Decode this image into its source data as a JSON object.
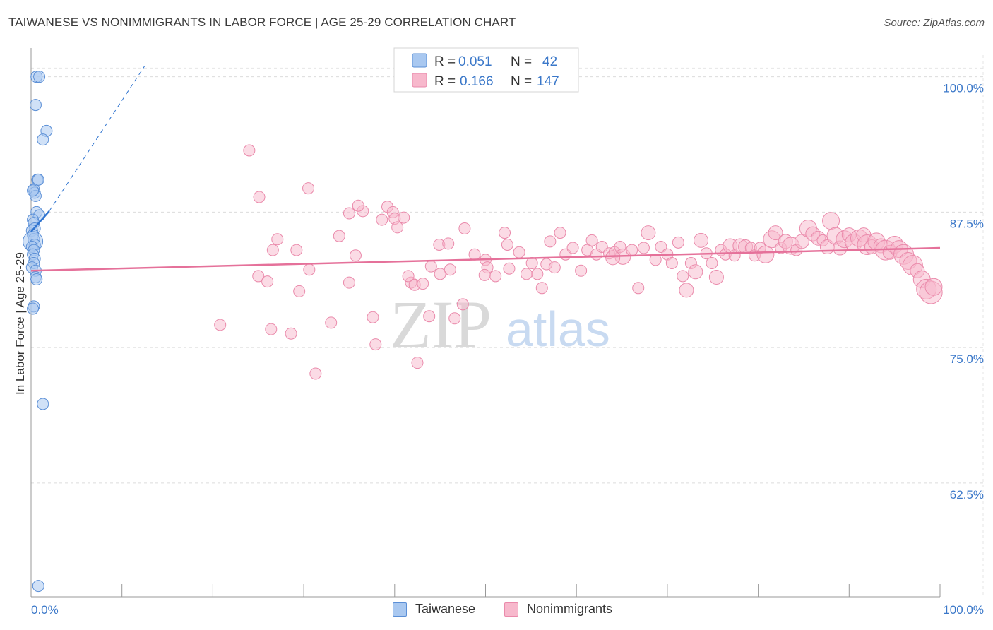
{
  "header": {
    "title": "TAIWANESE VS NONIMMIGRANTS IN LABOR FORCE | AGE 25-29 CORRELATION CHART",
    "source": "Source: ZipAtlas.com"
  },
  "watermark": {
    "zip": "ZIP",
    "atlas": "atlas"
  },
  "colors": {
    "taiwanese_fill": "#a9c8f0",
    "taiwanese_stroke": "#5b8fd6",
    "taiwanese_line": "#2f74d0",
    "nonimm_fill": "#f7b8cc",
    "nonimm_stroke": "#ea8aab",
    "nonimm_line": "#e5719a",
    "tick": "#3b78c9"
  },
  "legend": {
    "rows": [
      {
        "r_label": "R =",
        "r_value": "0.051",
        "n_label": "N =",
        "n_value": "42"
      },
      {
        "r_label": "R =",
        "r_value": "0.166",
        "n_label": "N =",
        "n_value": "147"
      }
    ]
  },
  "chart_data": {
    "type": "scatter",
    "title": "TAIWANESE VS NONIMMIGRANTS IN LABOR FORCE | AGE 25-29 CORRELATION CHART",
    "xlabel": "",
    "ylabel": "In Labor Force | Age 25-29",
    "xlim": [
      0,
      100
    ],
    "ylim": [
      52,
      102
    ],
    "x_tick_labels": [
      "0.0%",
      "100.0%"
    ],
    "y_ticks": [
      100,
      87.5,
      75,
      62.5
    ],
    "y_tick_labels": [
      "100.0%",
      "87.5%",
      "75.0%",
      "62.5%"
    ],
    "series": [
      {
        "name": "Taiwanese",
        "r": 0.051,
        "n": 42,
        "trend": {
          "x": [
            0,
            2
          ],
          "y": [
            85.7,
            87.6
          ],
          "dashed_to": [
            12.5,
            101
          ]
        },
        "points": [
          [
            0.6,
            100.0,
            8
          ],
          [
            0.9,
            100.0,
            8
          ],
          [
            0.5,
            97.4,
            8
          ],
          [
            1.7,
            95.0,
            8
          ],
          [
            1.3,
            94.2,
            8
          ],
          [
            0.7,
            90.5,
            8
          ],
          [
            0.8,
            90.5,
            8
          ],
          [
            0.3,
            89.6,
            8
          ],
          [
            0.4,
            89.3,
            8
          ],
          [
            0.5,
            89.0,
            8
          ],
          [
            0.2,
            89.5,
            8
          ],
          [
            0.6,
            87.5,
            8
          ],
          [
            0.9,
            87.2,
            8
          ],
          [
            0.2,
            86.8,
            8
          ],
          [
            0.3,
            86.5,
            8
          ],
          [
            0.4,
            86.0,
            8
          ],
          [
            0.1,
            85.8,
            8
          ],
          [
            0.2,
            85.4,
            8
          ],
          [
            0.3,
            85.0,
            8
          ],
          [
            0.2,
            84.8,
            14
          ],
          [
            0.4,
            84.5,
            8
          ],
          [
            0.1,
            84.3,
            8
          ],
          [
            0.3,
            84.0,
            8
          ],
          [
            0.2,
            83.6,
            8
          ],
          [
            0.4,
            83.2,
            8
          ],
          [
            0.3,
            82.8,
            8
          ],
          [
            0.1,
            82.4,
            8
          ],
          [
            0.5,
            82.1,
            8
          ],
          [
            0.5,
            81.5,
            8
          ],
          [
            0.6,
            81.3,
            8
          ],
          [
            0.3,
            78.8,
            8
          ],
          [
            0.2,
            78.6,
            8
          ],
          [
            1.3,
            69.8,
            8
          ],
          [
            0.8,
            53.0,
            8
          ]
        ]
      },
      {
        "name": "Nonimmigrants",
        "r": 0.166,
        "n": 147,
        "trend": {
          "x": [
            0,
            100
          ],
          "y": [
            82.1,
            84.2
          ]
        },
        "points": [
          [
            24.0,
            93.2,
            8
          ],
          [
            25.1,
            88.9,
            8
          ],
          [
            30.5,
            89.7,
            8
          ],
          [
            35.0,
            87.4,
            8
          ],
          [
            36.5,
            87.6,
            8
          ],
          [
            36.0,
            88.1,
            8
          ],
          [
            38.6,
            86.8,
            8
          ],
          [
            39.2,
            88.0,
            8
          ],
          [
            39.8,
            87.5,
            8
          ],
          [
            40.0,
            86.9,
            8
          ],
          [
            40.3,
            86.1,
            8
          ],
          [
            41.0,
            87.0,
            8
          ],
          [
            33.9,
            85.3,
            8
          ],
          [
            27.1,
            85.0,
            8
          ],
          [
            26.6,
            84.0,
            8
          ],
          [
            29.2,
            84.0,
            8
          ],
          [
            35.7,
            83.5,
            8
          ],
          [
            30.6,
            82.2,
            8
          ],
          [
            25.0,
            81.6,
            8
          ],
          [
            26.0,
            81.1,
            8
          ],
          [
            29.5,
            80.2,
            8
          ],
          [
            35.0,
            81.0,
            8
          ],
          [
            20.8,
            77.1,
            8
          ],
          [
            26.4,
            76.7,
            8
          ],
          [
            28.6,
            76.3,
            8
          ],
          [
            33.0,
            77.3,
            8
          ],
          [
            37.6,
            77.8,
            8
          ],
          [
            37.9,
            75.3,
            8
          ],
          [
            31.3,
            72.6,
            8
          ],
          [
            42.5,
            73.6,
            8
          ],
          [
            41.8,
            81.0,
            8
          ],
          [
            42.2,
            80.8,
            8
          ],
          [
            43.1,
            80.9,
            8
          ],
          [
            41.5,
            81.6,
            8
          ],
          [
            44.0,
            82.5,
            8
          ],
          [
            45.0,
            81.8,
            8
          ],
          [
            46.1,
            82.2,
            8
          ],
          [
            47.5,
            79.0,
            8
          ],
          [
            46.6,
            77.7,
            8
          ],
          [
            43.8,
            77.9,
            8
          ],
          [
            44.9,
            84.5,
            8
          ],
          [
            45.9,
            84.6,
            8
          ],
          [
            47.7,
            86.0,
            8
          ],
          [
            48.8,
            83.6,
            8
          ],
          [
            50.0,
            83.1,
            8
          ],
          [
            50.2,
            82.4,
            8
          ],
          [
            51.1,
            81.6,
            8
          ],
          [
            49.9,
            81.7,
            8
          ],
          [
            52.6,
            82.3,
            8
          ],
          [
            52.1,
            85.6,
            8
          ],
          [
            52.4,
            84.5,
            8
          ],
          [
            53.7,
            83.8,
            8
          ],
          [
            54.5,
            81.8,
            8
          ],
          [
            55.1,
            82.8,
            8
          ],
          [
            55.7,
            81.8,
            8
          ],
          [
            56.7,
            82.7,
            8
          ],
          [
            57.6,
            82.4,
            8
          ],
          [
            57.1,
            84.8,
            8
          ],
          [
            58.2,
            85.6,
            8
          ],
          [
            58.8,
            83.6,
            8
          ],
          [
            59.6,
            84.2,
            8
          ],
          [
            60.5,
            82.1,
            8
          ],
          [
            61.2,
            84.0,
            8
          ],
          [
            61.7,
            84.9,
            8
          ],
          [
            62.2,
            83.6,
            8
          ],
          [
            62.8,
            84.3,
            8
          ],
          [
            63.6,
            83.7,
            8
          ],
          [
            64.2,
            83.8,
            8
          ],
          [
            64.8,
            84.3,
            8
          ],
          [
            65.1,
            83.4,
            11
          ],
          [
            66.1,
            84.0,
            8
          ],
          [
            66.8,
            80.5,
            8
          ],
          [
            67.4,
            84.2,
            8
          ],
          [
            67.9,
            85.6,
            10
          ],
          [
            68.7,
            83.1,
            8
          ],
          [
            69.3,
            84.3,
            8
          ],
          [
            70.0,
            83.6,
            8
          ],
          [
            70.5,
            82.8,
            8
          ],
          [
            71.2,
            84.7,
            8
          ],
          [
            71.7,
            81.6,
            8
          ],
          [
            72.1,
            80.3,
            10
          ],
          [
            72.6,
            82.8,
            8
          ],
          [
            73.1,
            82.0,
            10
          ],
          [
            73.7,
            84.9,
            10
          ],
          [
            74.3,
            83.7,
            8
          ],
          [
            74.9,
            82.8,
            8
          ],
          [
            75.4,
            81.5,
            10
          ],
          [
            75.9,
            84.0,
            8
          ],
          [
            76.4,
            83.6,
            8
          ],
          [
            76.9,
            84.4,
            10
          ],
          [
            77.4,
            83.5,
            8
          ],
          [
            78.0,
            84.4,
            10
          ],
          [
            78.6,
            84.3,
            10
          ],
          [
            79.2,
            84.2,
            8
          ],
          [
            79.6,
            83.5,
            8
          ],
          [
            80.2,
            84.2,
            8
          ],
          [
            80.8,
            83.6,
            12
          ],
          [
            81.5,
            85.0,
            12
          ],
          [
            81.9,
            85.6,
            10
          ],
          [
            82.5,
            84.2,
            8
          ],
          [
            83.0,
            84.8,
            10
          ],
          [
            83.6,
            84.4,
            12
          ],
          [
            84.2,
            84.0,
            8
          ],
          [
            84.8,
            84.8,
            10
          ],
          [
            85.5,
            86.0,
            12
          ],
          [
            86.0,
            85.5,
            10
          ],
          [
            86.6,
            85.1,
            10
          ],
          [
            87.1,
            84.9,
            8
          ],
          [
            87.6,
            84.3,
            10
          ],
          [
            88.0,
            86.7,
            12
          ],
          [
            88.5,
            85.3,
            12
          ],
          [
            89.0,
            84.2,
            10
          ],
          [
            89.5,
            85.0,
            12
          ],
          [
            90.0,
            85.4,
            10
          ],
          [
            90.5,
            84.7,
            12
          ],
          [
            91.1,
            85.1,
            12
          ],
          [
            91.6,
            85.4,
            10
          ],
          [
            92.0,
            84.5,
            14
          ],
          [
            92.5,
            84.3,
            10
          ],
          [
            93.0,
            84.8,
            12
          ],
          [
            93.5,
            84.4,
            10
          ],
          [
            94.0,
            84.0,
            14
          ],
          [
            94.5,
            83.8,
            10
          ],
          [
            95.0,
            84.5,
            12
          ],
          [
            95.5,
            84.1,
            12
          ],
          [
            96.0,
            83.6,
            14
          ],
          [
            96.5,
            83.0,
            12
          ],
          [
            97.0,
            82.6,
            14
          ],
          [
            97.5,
            82.1,
            10
          ],
          [
            98.0,
            81.3,
            12
          ],
          [
            98.5,
            80.4,
            14
          ],
          [
            99.0,
            80.1,
            16
          ],
          [
            99.3,
            80.6,
            12
          ],
          [
            64.0,
            83.3,
            10
          ],
          [
            56.2,
            80.5,
            8
          ]
        ]
      }
    ]
  },
  "bottom_legend": {
    "items": [
      {
        "label": "Taiwanese"
      },
      {
        "label": "Nonimmigrants"
      }
    ]
  }
}
